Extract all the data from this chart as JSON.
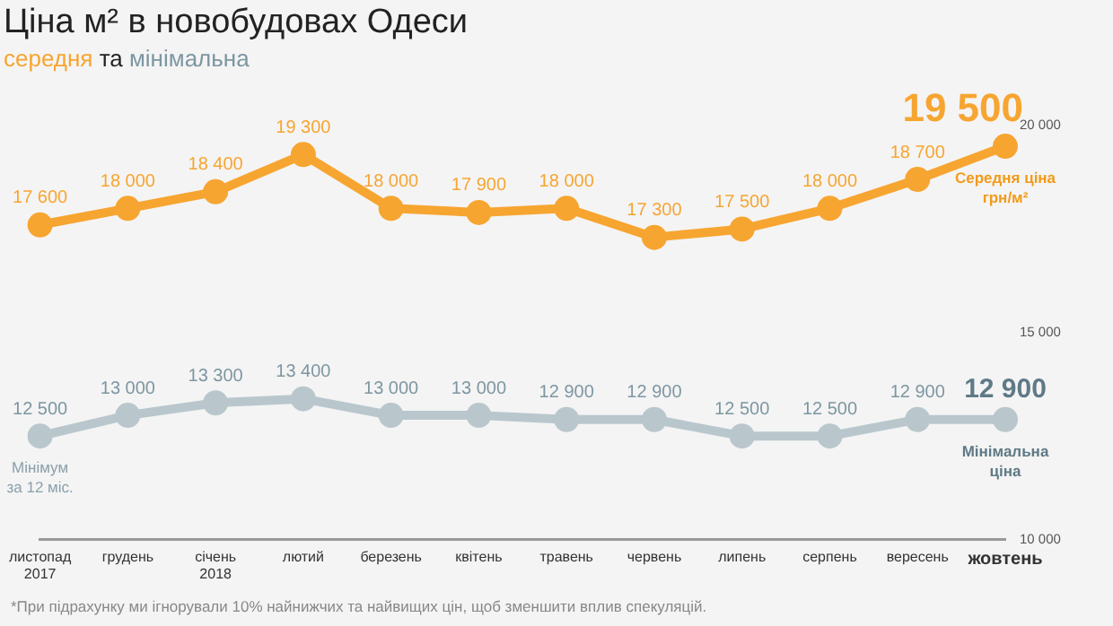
{
  "chart_data": {
    "type": "line",
    "title": "Ціна м² в новобудовах Одеси",
    "subtitle": "середня та мінімальна",
    "categories": [
      "листопад\n2017",
      "грудень",
      "січень\n2018",
      "лютий",
      "березень",
      "квітень",
      "травень",
      "червень",
      "липень",
      "серпень",
      "вересень",
      "жовтень"
    ],
    "series": [
      {
        "color": "#f7a531",
        "values": [
          17600,
          18000,
          18400,
          19300,
          18000,
          17900,
          18000,
          17300,
          17500,
          18000,
          18700,
          19500
        ]
      },
      {
        "color": "#b9c7cd",
        "values": [
          12500,
          13000,
          13300,
          13400,
          13000,
          13000,
          12900,
          12900,
          12500,
          12500,
          12900,
          12900
        ]
      }
    ],
    "ylim": [
      10000,
      20000
    ],
    "yticks": [
      {
        "value": 10000,
        "label": "10 000"
      },
      {
        "value": 15000,
        "label": "15 000"
      },
      {
        "value": 20000,
        "label": "20 000"
      }
    ],
    "grid": false,
    "legend": false,
    "marker": "circle",
    "line_style": "solid",
    "data_labels": true,
    "annotations": [
      {
        "text": "Середня ціна грн/м²",
        "x": "жовтень",
        "y": 19500
      },
      {
        "text": "Мінімальна ціна",
        "x": "жовтень",
        "y": 12900
      },
      {
        "text": "Мінімум за 12 міс.",
        "x": "листопад\n2017",
        "y": 12500
      },
      "*При підрахунку ми ігнорували 10% найнижчих та найвищих цін, щоб зменшити вплив спекуляцій."
    ]
  }
}
